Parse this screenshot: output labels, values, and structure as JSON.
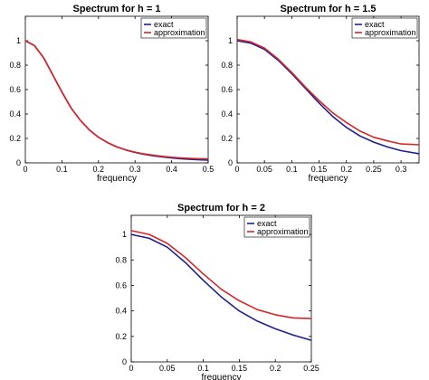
{
  "chart_data": [
    {
      "type": "line",
      "title": "Spectrum for h = 1",
      "xlabel": "frequency",
      "ylabel": "",
      "xlim": [
        0,
        0.5
      ],
      "ylim": [
        0,
        1.2
      ],
      "xticks": [
        0,
        0.1,
        0.2,
        0.3,
        0.4,
        0.5
      ],
      "xtick_labels": [
        "0",
        "0.1",
        "0.2",
        "0.3",
        "0.4",
        "0.5"
      ],
      "yticks": [
        0,
        0.2,
        0.4,
        0.6,
        0.8,
        1
      ],
      "ytick_labels": [
        "0",
        "0.2",
        "0.4",
        "0.6",
        "0.8",
        "1"
      ],
      "legend_position": "top-right",
      "series": [
        {
          "name": "exact",
          "color": "#1f1f8f",
          "x": [
            0,
            0.025,
            0.05,
            0.075,
            0.1,
            0.125,
            0.15,
            0.175,
            0.2,
            0.225,
            0.25,
            0.275,
            0.3,
            0.325,
            0.35,
            0.375,
            0.4,
            0.425,
            0.45,
            0.475,
            0.5
          ],
          "y": [
            1.0,
            0.96,
            0.86,
            0.72,
            0.58,
            0.45,
            0.35,
            0.27,
            0.21,
            0.165,
            0.13,
            0.105,
            0.085,
            0.07,
            0.058,
            0.048,
            0.04,
            0.034,
            0.029,
            0.025,
            0.022
          ]
        },
        {
          "name": "approximation",
          "color": "#d62728",
          "x": [
            0,
            0.025,
            0.05,
            0.075,
            0.1,
            0.125,
            0.15,
            0.175,
            0.2,
            0.225,
            0.25,
            0.275,
            0.3,
            0.325,
            0.35,
            0.375,
            0.4,
            0.425,
            0.45,
            0.475,
            0.5
          ],
          "y": [
            1.0,
            0.96,
            0.86,
            0.72,
            0.58,
            0.45,
            0.35,
            0.27,
            0.21,
            0.166,
            0.132,
            0.107,
            0.088,
            0.073,
            0.062,
            0.053,
            0.046,
            0.041,
            0.037,
            0.034,
            0.032
          ]
        }
      ]
    },
    {
      "type": "line",
      "title": "Spectrum for h = 1.5",
      "xlabel": "frequency",
      "ylabel": "",
      "xlim": [
        0,
        0.333
      ],
      "ylim": [
        0,
        1.2
      ],
      "xticks": [
        0,
        0.05,
        0.1,
        0.15,
        0.2,
        0.25,
        0.3
      ],
      "xtick_labels": [
        "0",
        "0.05",
        "0.1",
        "0.15",
        "0.2",
        "0.25",
        "0.3"
      ],
      "yticks": [
        0,
        0.2,
        0.4,
        0.6,
        0.8,
        1
      ],
      "ytick_labels": [
        "0",
        "0.2",
        "0.4",
        "0.6",
        "0.8",
        "1"
      ],
      "legend_position": "top-right",
      "series": [
        {
          "name": "exact",
          "color": "#1f1f8f",
          "x": [
            0,
            0.025,
            0.05,
            0.075,
            0.1,
            0.125,
            0.15,
            0.175,
            0.2,
            0.225,
            0.25,
            0.275,
            0.3,
            0.333
          ],
          "y": [
            1.0,
            0.98,
            0.93,
            0.84,
            0.73,
            0.61,
            0.49,
            0.38,
            0.29,
            0.22,
            0.17,
            0.13,
            0.1,
            0.075
          ]
        },
        {
          "name": "approximation",
          "color": "#d62728",
          "x": [
            0,
            0.025,
            0.05,
            0.075,
            0.1,
            0.125,
            0.15,
            0.175,
            0.2,
            0.225,
            0.25,
            0.275,
            0.3,
            0.333
          ],
          "y": [
            1.01,
            0.99,
            0.94,
            0.85,
            0.74,
            0.62,
            0.51,
            0.41,
            0.33,
            0.26,
            0.21,
            0.18,
            0.155,
            0.148
          ]
        }
      ]
    },
    {
      "type": "line",
      "title": "Spectrum for h = 2",
      "xlabel": "frequency",
      "ylabel": "",
      "xlim": [
        0,
        0.25
      ],
      "ylim": [
        0,
        1.15
      ],
      "xticks": [
        0,
        0.05,
        0.1,
        0.15,
        0.2,
        0.25
      ],
      "xtick_labels": [
        "0",
        "0.05",
        "0.1",
        "0.15",
        "0.2",
        "0.25"
      ],
      "yticks": [
        0,
        0.2,
        0.4,
        0.6,
        0.8,
        1
      ],
      "ytick_labels": [
        "0",
        "0.2",
        "0.4",
        "0.6",
        "0.8",
        "1"
      ],
      "legend_position": "top-right",
      "series": [
        {
          "name": "exact",
          "color": "#1f1f8f",
          "x": [
            0,
            0.025,
            0.05,
            0.075,
            0.1,
            0.125,
            0.15,
            0.175,
            0.2,
            0.225,
            0.25
          ],
          "y": [
            1.0,
            0.97,
            0.9,
            0.78,
            0.64,
            0.51,
            0.4,
            0.32,
            0.26,
            0.21,
            0.17
          ]
        },
        {
          "name": "approximation",
          "color": "#d62728",
          "x": [
            0,
            0.025,
            0.05,
            0.075,
            0.1,
            0.125,
            0.15,
            0.175,
            0.2,
            0.225,
            0.25
          ],
          "y": [
            1.03,
            1.0,
            0.93,
            0.82,
            0.69,
            0.57,
            0.48,
            0.41,
            0.37,
            0.345,
            0.34
          ]
        }
      ]
    }
  ]
}
